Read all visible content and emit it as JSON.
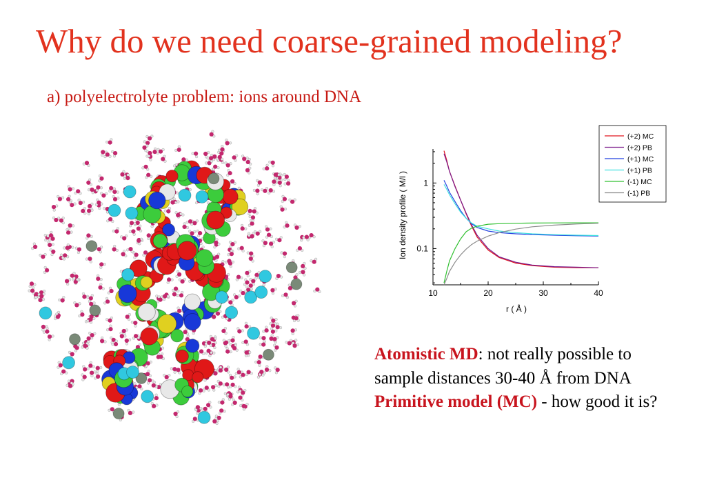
{
  "slide": {
    "title": "Why do we need coarse-grained modeling?",
    "subtitle": "a) polyelectrolyte problem: ions around DNA"
  },
  "body": {
    "p1_highlight": "Atomistic MD",
    "p1_rest": ": not really possible to sample distances 30-40 Å from DNA",
    "p2_highlight": "Primitive model (MC)",
    "p2_rest": " - how good it is?"
  },
  "colors": {
    "title": "#e2321e",
    "subtitle": "#c71a14",
    "highlight": "#c8141e",
    "water_oxygen": "#c3286e",
    "dna_carbon": "#3ccc3c",
    "dna_oxygen": "#e01818",
    "dna_nitrogen": "#1838d8",
    "dna_phosphorus": "#e0d020",
    "ion_cyan": "#30c8e0",
    "ion_gray": "#7a8a78"
  },
  "chart_data": {
    "type": "line",
    "xlabel": "r ( Å )",
    "ylabel": "Ion density profile ( M/l )",
    "xlim": [
      10,
      40
    ],
    "ylim": [
      0.028,
      3.3
    ],
    "yscale": "log",
    "x_ticks": [
      "10",
      "20",
      "30",
      "40"
    ],
    "y_ticks": [
      {
        "value": 1,
        "label": "1"
      },
      {
        "value": 0.1,
        "label": "0.1"
      }
    ],
    "grid": false,
    "legend_position": "top-right",
    "series": [
      {
        "name": "(+2) MC",
        "color": "#e0141e",
        "x": [
          12,
          12.5,
          13,
          14,
          15,
          16,
          17,
          18,
          20,
          22,
          25,
          28,
          32,
          36,
          40
        ],
        "y": [
          3.1,
          2.2,
          1.5,
          0.9,
          0.55,
          0.34,
          0.22,
          0.15,
          0.095,
          0.073,
          0.06,
          0.055,
          0.052,
          0.051,
          0.051
        ]
      },
      {
        "name": "(+2) PB",
        "color": "#7a1a8c",
        "x": [
          12,
          12.5,
          13,
          14,
          15,
          16,
          17,
          18,
          20,
          22,
          25,
          28,
          32,
          36,
          40
        ],
        "y": [
          2.8,
          2.1,
          1.5,
          0.88,
          0.55,
          0.35,
          0.23,
          0.16,
          0.1,
          0.075,
          0.062,
          0.056,
          0.053,
          0.052,
          0.051
        ]
      },
      {
        "name": "(+1) MC",
        "color": "#2040e0",
        "x": [
          12,
          12.5,
          13,
          14,
          15,
          16,
          17,
          18,
          20,
          22,
          25,
          28,
          32,
          36,
          40
        ],
        "y": [
          1.1,
          0.9,
          0.72,
          0.52,
          0.38,
          0.29,
          0.24,
          0.21,
          0.185,
          0.175,
          0.168,
          0.163,
          0.16,
          0.157,
          0.155
        ]
      },
      {
        "name": "(+1) PB",
        "color": "#40e0e0",
        "x": [
          12,
          12.5,
          13,
          14,
          15,
          16,
          17,
          18,
          20,
          22,
          25,
          28,
          32,
          36,
          40
        ],
        "y": [
          0.95,
          0.8,
          0.66,
          0.48,
          0.36,
          0.29,
          0.245,
          0.22,
          0.2,
          0.185,
          0.175,
          0.168,
          0.163,
          0.16,
          0.158
        ]
      },
      {
        "name": "(-1) MC",
        "color": "#30c030",
        "x": [
          12,
          12.5,
          13,
          14,
          15,
          16,
          17,
          18,
          20,
          22,
          25,
          28,
          32,
          36,
          40
        ],
        "y": [
          0.03,
          0.045,
          0.065,
          0.1,
          0.14,
          0.18,
          0.205,
          0.22,
          0.235,
          0.24,
          0.243,
          0.245,
          0.246,
          0.247,
          0.247
        ]
      },
      {
        "name": "(-1) PB",
        "color": "#8c8c8c",
        "x": [
          12,
          12.5,
          13,
          14,
          15,
          16,
          17,
          18,
          20,
          22,
          25,
          28,
          32,
          36,
          40
        ],
        "y": [
          0.028,
          0.035,
          0.045,
          0.062,
          0.08,
          0.098,
          0.115,
          0.13,
          0.155,
          0.175,
          0.198,
          0.215,
          0.228,
          0.237,
          0.243
        ]
      }
    ]
  }
}
